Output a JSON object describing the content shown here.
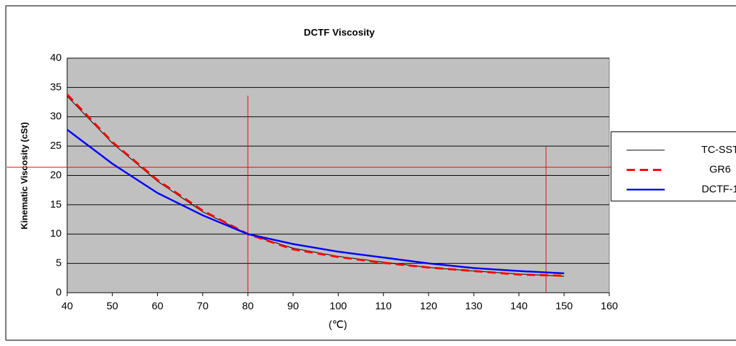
{
  "chart_data": {
    "type": "line",
    "title": "DCTF Viscosity",
    "x_label": "(℃)",
    "y_label": "Kinematic Viscosity (cSt)",
    "x": [
      40,
      50,
      60,
      70,
      80,
      90,
      100,
      110,
      120,
      130,
      140,
      150
    ],
    "series": [
      {
        "name": "TC-SST",
        "color": "#000000",
        "dash": "solid",
        "width": 1,
        "values": [
          33.5,
          25.5,
          19.0,
          13.8,
          10.0,
          7.6,
          6.2,
          5.2,
          4.3,
          3.7,
          3.2,
          2.8
        ]
      },
      {
        "name": "GR6",
        "color": "#ff0000",
        "dash": "dashed",
        "width": 3,
        "values": [
          33.8,
          25.7,
          19.2,
          14.0,
          10.0,
          7.4,
          6.1,
          5.1,
          4.3,
          3.7,
          3.1,
          2.9
        ]
      },
      {
        "name": "DCTF-1",
        "color": "#0000ff",
        "dash": "solid",
        "width": 2.5,
        "values": [
          27.8,
          22.0,
          17.0,
          13.2,
          10.0,
          8.3,
          7.0,
          6.0,
          5.0,
          4.2,
          3.7,
          3.3
        ]
      }
    ],
    "xlim": [
      40,
      160
    ],
    "xticks": [
      40,
      50,
      60,
      70,
      80,
      90,
      100,
      110,
      120,
      130,
      140,
      150,
      160
    ],
    "ylim": [
      0,
      40
    ],
    "yticks": [
      0,
      5,
      10,
      15,
      20,
      25,
      30,
      35,
      40
    ],
    "grid": true,
    "legend": "right",
    "vlines": [
      {
        "x": 80,
        "ymax": 33.6
      },
      {
        "x": 146,
        "ymax": 25
      }
    ],
    "hlines": [
      21.4
    ],
    "reference_color": "#ff0000"
  }
}
